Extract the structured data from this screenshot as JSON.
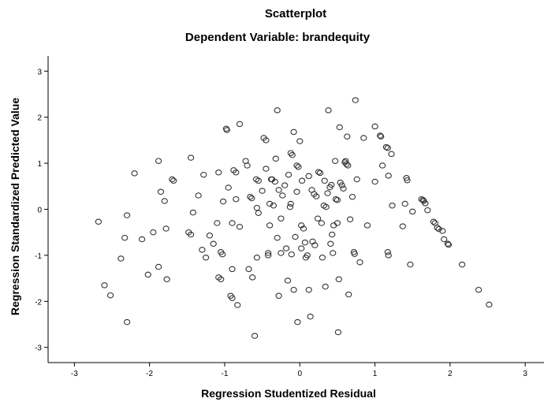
{
  "chart_data": {
    "type": "scatter",
    "title": "Scatterplot",
    "subtitle": "Dependent Variable: brandequity",
    "xlabel": "Regression Studentized Residual",
    "ylabel": "Regression Standardized Predicted Value",
    "xlim": [
      -3.35,
      3.25
    ],
    "ylim": [
      -3.33,
      3.33
    ],
    "xticks": [
      -3,
      -2,
      -1,
      0,
      1,
      2,
      3
    ],
    "yticks": [
      -3,
      -2,
      -1,
      0,
      1,
      2,
      3
    ],
    "xtick_labels": [
      "-3",
      "-2",
      "-1",
      "0",
      "1",
      "2",
      "3"
    ],
    "ytick_labels": [
      "-3",
      "-2",
      "-1",
      "0",
      "1",
      "2",
      "3"
    ],
    "grid": false,
    "marker_color": "#333333",
    "points": [
      [
        -2.68,
        -0.27
      ],
      [
        -2.6,
        -1.65
      ],
      [
        -2.52,
        -1.87
      ],
      [
        -2.38,
        -1.07
      ],
      [
        -2.33,
        -0.62
      ],
      [
        -2.3,
        -0.13
      ],
      [
        -2.3,
        -2.45
      ],
      [
        -2.2,
        0.78
      ],
      [
        -2.1,
        -0.65
      ],
      [
        -2.02,
        -1.42
      ],
      [
        -1.95,
        -0.5
      ],
      [
        -1.88,
        1.05
      ],
      [
        -1.88,
        -1.25
      ],
      [
        -1.85,
        0.38
      ],
      [
        -1.8,
        0.18
      ],
      [
        -1.78,
        -0.42
      ],
      [
        -1.77,
        -1.52
      ],
      [
        -1.7,
        0.65
      ],
      [
        -1.68,
        0.62
      ],
      [
        -1.48,
        -0.5
      ],
      [
        -1.45,
        1.12
      ],
      [
        -1.45,
        -0.55
      ],
      [
        -1.42,
        -0.07
      ],
      [
        -1.35,
        0.3
      ],
      [
        -1.3,
        -0.88
      ],
      [
        -1.28,
        0.75
      ],
      [
        -1.25,
        -1.05
      ],
      [
        -1.2,
        -0.57
      ],
      [
        -1.15,
        -0.75
      ],
      [
        -1.1,
        -0.3
      ],
      [
        -1.08,
        0.8
      ],
      [
        -1.08,
        -1.48
      ],
      [
        -1.05,
        -1.52
      ],
      [
        -1.05,
        -0.93
      ],
      [
        -1.03,
        -0.98
      ],
      [
        -1.02,
        0.17
      ],
      [
        -0.98,
        1.75
      ],
      [
        -0.97,
        1.72
      ],
      [
        -0.95,
        0.47
      ],
      [
        -0.92,
        -1.88
      ],
      [
        -0.9,
        -1.93
      ],
      [
        -0.9,
        -0.3
      ],
      [
        -0.9,
        -1.3
      ],
      [
        -0.88,
        0.85
      ],
      [
        -0.85,
        0.22
      ],
      [
        -0.85,
        0.8
      ],
      [
        -0.83,
        -2.08
      ],
      [
        -0.8,
        1.85
      ],
      [
        -0.8,
        -0.38
      ],
      [
        -0.72,
        1.05
      ],
      [
        -0.7,
        0.95
      ],
      [
        -0.68,
        -1.3
      ],
      [
        -0.66,
        0.27
      ],
      [
        -0.64,
        0.24
      ],
      [
        -0.63,
        -1.48
      ],
      [
        -0.6,
        -2.75
      ],
      [
        -0.58,
        0.65
      ],
      [
        -0.57,
        0.03
      ],
      [
        -0.57,
        -1.05
      ],
      [
        -0.55,
        0.62
      ],
      [
        -0.55,
        -0.08
      ],
      [
        -0.5,
        0.4
      ],
      [
        -0.48,
        1.55
      ],
      [
        -0.45,
        1.5
      ],
      [
        -0.45,
        0.88
      ],
      [
        -0.42,
        -0.95
      ],
      [
        -0.42,
        -1.0
      ],
      [
        -0.4,
        -0.35
      ],
      [
        -0.4,
        0.12
      ],
      [
        -0.38,
        0.65
      ],
      [
        -0.37,
        0.65
      ],
      [
        -0.35,
        0.08
      ],
      [
        -0.33,
        0.6
      ],
      [
        -0.32,
        1.1
      ],
      [
        -0.3,
        2.15
      ],
      [
        -0.3,
        -0.62
      ],
      [
        -0.28,
        0.42
      ],
      [
        -0.28,
        -1.88
      ],
      [
        -0.25,
        -0.95
      ],
      [
        -0.25,
        -0.2
      ],
      [
        -0.23,
        0.3
      ],
      [
        -0.2,
        0.52
      ],
      [
        -0.18,
        -0.85
      ],
      [
        -0.16,
        -1.55
      ],
      [
        -0.15,
        0.75
      ],
      [
        -0.13,
        0.05
      ],
      [
        -0.12,
        0.12
      ],
      [
        -0.12,
        1.22
      ],
      [
        -0.11,
        -0.98
      ],
      [
        -0.1,
        1.18
      ],
      [
        -0.08,
        1.68
      ],
      [
        -0.08,
        -1.75
      ],
      [
        -0.06,
        -0.6
      ],
      [
        -0.04,
        0.38
      ],
      [
        -0.04,
        0.95
      ],
      [
        -0.03,
        -2.45
      ],
      [
        -0.02,
        0.92
      ],
      [
        0.0,
        1.48
      ],
      [
        0.02,
        -0.35
      ],
      [
        0.02,
        -0.85
      ],
      [
        0.03,
        0.62
      ],
      [
        0.05,
        -0.42
      ],
      [
        0.07,
        -0.72
      ],
      [
        0.08,
        -1.05
      ],
      [
        0.1,
        -1.0
      ],
      [
        0.12,
        0.72
      ],
      [
        0.12,
        -1.75
      ],
      [
        0.14,
        -2.33
      ],
      [
        0.16,
        0.42
      ],
      [
        0.17,
        -0.7
      ],
      [
        0.19,
        0.33
      ],
      [
        0.2,
        -0.78
      ],
      [
        0.22,
        0.28
      ],
      [
        0.24,
        -0.2
      ],
      [
        0.25,
        0.81
      ],
      [
        0.27,
        0.79
      ],
      [
        0.29,
        -0.3
      ],
      [
        0.3,
        -1.05
      ],
      [
        0.32,
        0.08
      ],
      [
        0.33,
        0.62
      ],
      [
        0.34,
        -1.68
      ],
      [
        0.35,
        0.05
      ],
      [
        0.37,
        0.35
      ],
      [
        0.38,
        2.15
      ],
      [
        0.4,
        0.48
      ],
      [
        0.41,
        -0.75
      ],
      [
        0.42,
        0.53
      ],
      [
        0.43,
        -0.55
      ],
      [
        0.44,
        -0.95
      ],
      [
        0.45,
        -0.35
      ],
      [
        0.47,
        1.05
      ],
      [
        0.48,
        0.22
      ],
      [
        0.5,
        -0.3
      ],
      [
        0.5,
        0.2
      ],
      [
        0.51,
        -2.67
      ],
      [
        0.52,
        -1.52
      ],
      [
        0.53,
        1.78
      ],
      [
        0.54,
        0.58
      ],
      [
        0.56,
        0.52
      ],
      [
        0.58,
        0.45
      ],
      [
        0.6,
        1.02
      ],
      [
        0.61,
        1.05
      ],
      [
        0.62,
        0.98
      ],
      [
        0.63,
        1.58
      ],
      [
        0.64,
        0.95
      ],
      [
        0.65,
        -1.85
      ],
      [
        0.67,
        -0.22
      ],
      [
        0.7,
        0.27
      ],
      [
        0.72,
        -0.93
      ],
      [
        0.73,
        -0.97
      ],
      [
        0.74,
        2.37
      ],
      [
        0.76,
        0.65
      ],
      [
        0.8,
        -1.15
      ],
      [
        0.85,
        1.55
      ],
      [
        0.9,
        -0.35
      ],
      [
        1.0,
        1.8
      ],
      [
        1.0,
        0.6
      ],
      [
        1.07,
        1.6
      ],
      [
        1.08,
        1.58
      ],
      [
        1.1,
        0.95
      ],
      [
        1.15,
        1.35
      ],
      [
        1.17,
        1.33
      ],
      [
        1.17,
        -0.93
      ],
      [
        1.18,
        0.73
      ],
      [
        1.18,
        -1.0
      ],
      [
        1.22,
        1.2
      ],
      [
        1.23,
        0.08
      ],
      [
        1.37,
        -0.37
      ],
      [
        1.4,
        0.12
      ],
      [
        1.42,
        0.68
      ],
      [
        1.43,
        0.63
      ],
      [
        1.47,
        -1.2
      ],
      [
        1.5,
        -0.05
      ],
      [
        1.62,
        0.22
      ],
      [
        1.64,
        0.2
      ],
      [
        1.65,
        0.18
      ],
      [
        1.67,
        0.13
      ],
      [
        1.7,
        -0.02
      ],
      [
        1.78,
        -0.27
      ],
      [
        1.8,
        -0.3
      ],
      [
        1.83,
        -0.4
      ],
      [
        1.85,
        -0.43
      ],
      [
        1.9,
        -0.47
      ],
      [
        1.92,
        -0.65
      ],
      [
        1.97,
        -0.75
      ],
      [
        1.98,
        -0.77
      ],
      [
        2.16,
        -1.2
      ],
      [
        2.38,
        -1.75
      ],
      [
        2.52,
        -2.07
      ]
    ]
  }
}
